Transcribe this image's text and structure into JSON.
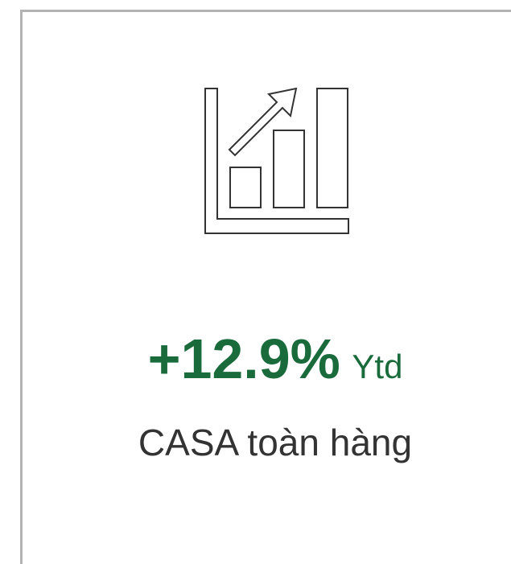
{
  "metric": {
    "value": "+12.9%",
    "period": "Ytd",
    "label": "CASA toàn hàng"
  }
}
